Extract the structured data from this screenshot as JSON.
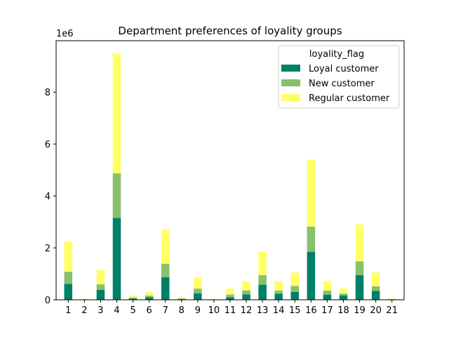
{
  "chart_data": {
    "type": "bar",
    "stacked": true,
    "title": "Department preferences of loyality groups",
    "xlabel": "",
    "ylabel": "",
    "y_multiplier_label": "1e6",
    "y_multiplier": 1000000,
    "ylim": [
      0,
      9.98
    ],
    "yticks": [
      0,
      2,
      4,
      6,
      8
    ],
    "categories": [
      "1",
      "2",
      "3",
      "4",
      "5",
      "6",
      "7",
      "8",
      "9",
      "10",
      "11",
      "12",
      "13",
      "14",
      "15",
      "16",
      "17",
      "18",
      "19",
      "20",
      "21"
    ],
    "legend": {
      "title": "loyality_flag",
      "placement": "upper-right"
    },
    "series": [
      {
        "name": "Loyal customer",
        "color": "#008066",
        "values": [
          0.61,
          0.01,
          0.38,
          3.15,
          0.05,
          0.1,
          0.87,
          0.03,
          0.25,
          0.01,
          0.1,
          0.21,
          0.58,
          0.23,
          0.3,
          1.85,
          0.2,
          0.17,
          0.95,
          0.34,
          0.02
        ]
      },
      {
        "name": "New customer",
        "color": "#88c06c",
        "values": [
          0.47,
          0.01,
          0.22,
          1.72,
          0.03,
          0.06,
          0.52,
          0.02,
          0.18,
          0.01,
          0.1,
          0.15,
          0.37,
          0.13,
          0.23,
          0.97,
          0.15,
          0.07,
          0.53,
          0.18,
          0.01
        ]
      },
      {
        "name": "Regular customer",
        "color": "#ffff66",
        "values": [
          1.17,
          0.02,
          0.55,
          4.62,
          0.08,
          0.13,
          1.32,
          0.04,
          0.44,
          0.02,
          0.23,
          0.35,
          0.92,
          0.36,
          0.52,
          2.58,
          0.38,
          0.2,
          1.42,
          0.53,
          0.02
        ]
      }
    ]
  }
}
